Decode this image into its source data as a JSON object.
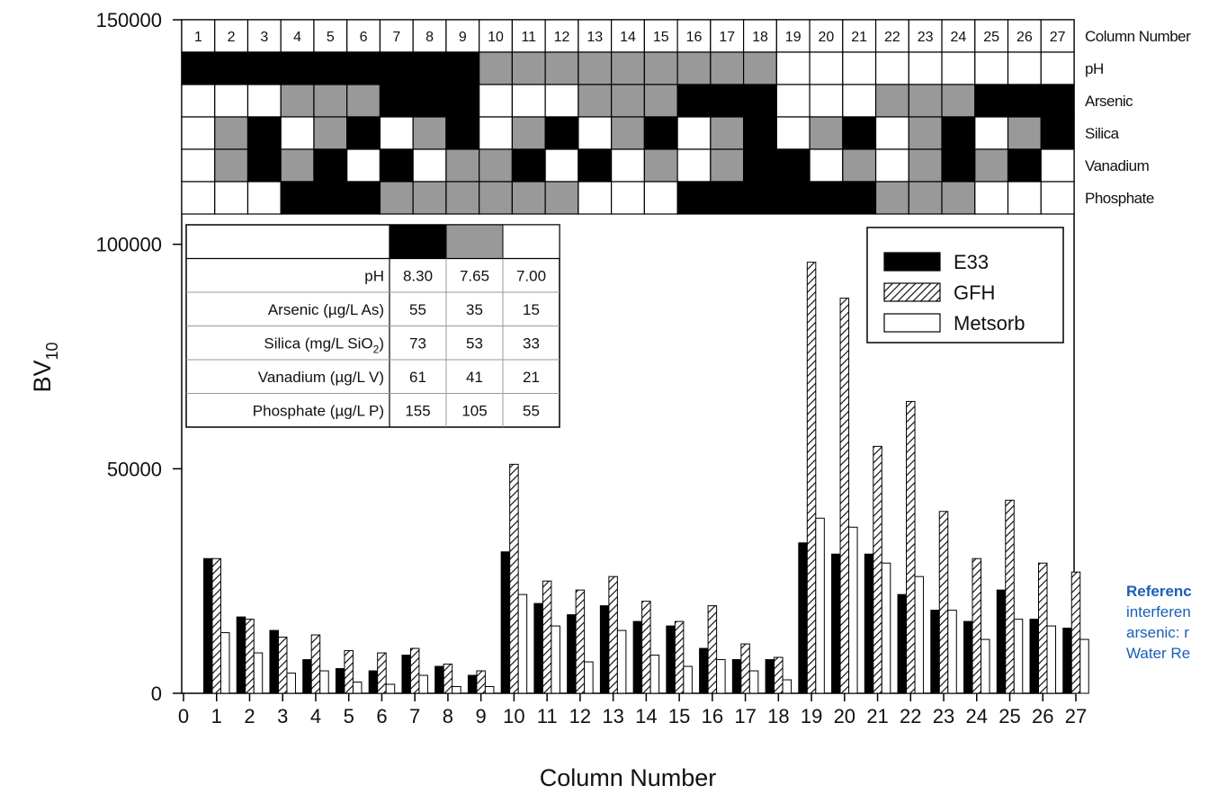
{
  "chart_data": {
    "type": "bar",
    "xlabel": "Column Number",
    "ylabel": "BV",
    "ylabel_subscript": "10",
    "ylim": [
      0,
      150000
    ],
    "yticks": [
      "0",
      "50000",
      "100000",
      "150000"
    ],
    "xlim": [
      0,
      27
    ],
    "xticks": [
      "0",
      "1",
      "2",
      "3",
      "4",
      "5",
      "6",
      "7",
      "8",
      "9",
      "10",
      "11",
      "12",
      "13",
      "14",
      "15",
      "16",
      "17",
      "18",
      "19",
      "20",
      "21",
      "22",
      "23",
      "24",
      "25",
      "26",
      "27"
    ],
    "categories": [
      1,
      2,
      3,
      4,
      5,
      6,
      7,
      8,
      9,
      10,
      11,
      12,
      13,
      14,
      15,
      16,
      17,
      18,
      19,
      20,
      21,
      22,
      23,
      24,
      25,
      26,
      27
    ],
    "series": [
      {
        "name": "E33",
        "fill": "solid-black",
        "values": [
          30000,
          17000,
          14000,
          7500,
          5500,
          5000,
          8500,
          6000,
          4000,
          31500,
          20000,
          17500,
          19500,
          16000,
          15000,
          10000,
          7500,
          7500,
          33500,
          31000,
          31000,
          22000,
          18500,
          16000,
          23000,
          16500,
          14500
        ]
      },
      {
        "name": "GFH",
        "fill": "hatched",
        "values": [
          30000,
          16500,
          12500,
          13000,
          9500,
          9000,
          10000,
          6500,
          5000,
          51000,
          25000,
          23000,
          26000,
          20500,
          16000,
          19500,
          11000,
          8000,
          96000,
          88000,
          55000,
          65000,
          40500,
          30000,
          43000,
          29000,
          27000
        ]
      },
      {
        "name": "Metsorb",
        "fill": "white",
        "values": [
          13500,
          9000,
          4500,
          5000,
          2500,
          2000,
          4000,
          1500,
          1500,
          22000,
          15000,
          7000,
          14000,
          8500,
          6000,
          7500,
          5000,
          3000,
          39000,
          37000,
          29000,
          26000,
          18500,
          12000,
          16500,
          15000,
          12000
        ]
      }
    ],
    "legend_position": "upper-right",
    "condition_matrix": {
      "column_header_label": "Column Number",
      "rows": [
        {
          "label": "pH",
          "levels": [
            "H",
            "H",
            "H",
            "H",
            "H",
            "H",
            "H",
            "H",
            "H",
            "M",
            "M",
            "M",
            "M",
            "M",
            "M",
            "M",
            "M",
            "M",
            "L",
            "L",
            "L",
            "L",
            "L",
            "L",
            "L",
            "L",
            "L"
          ]
        },
        {
          "label": "Arsenic",
          "levels": [
            "L",
            "L",
            "L",
            "M",
            "M",
            "M",
            "H",
            "H",
            "H",
            "L",
            "L",
            "L",
            "M",
            "M",
            "M",
            "H",
            "H",
            "H",
            "L",
            "L",
            "L",
            "M",
            "M",
            "M",
            "H",
            "H",
            "H"
          ]
        },
        {
          "label": "Silica",
          "levels": [
            "L",
            "M",
            "H",
            "L",
            "M",
            "H",
            "L",
            "M",
            "H",
            "L",
            "M",
            "H",
            "L",
            "M",
            "H",
            "L",
            "M",
            "H",
            "L",
            "M",
            "H",
            "L",
            "M",
            "H",
            "L",
            "M",
            "H"
          ]
        },
        {
          "label": "Vanadium",
          "levels": [
            "L",
            "M",
            "H",
            "M",
            "H",
            "L",
            "H",
            "L",
            "M",
            "M",
            "H",
            "L",
            "H",
            "L",
            "M",
            "L",
            "M",
            "H",
            "H",
            "L",
            "M",
            "L",
            "M",
            "H",
            "M",
            "H",
            "L"
          ]
        },
        {
          "label": "Phosphate",
          "levels": [
            "L",
            "L",
            "L",
            "H",
            "H",
            "H",
            "M",
            "M",
            "M",
            "M",
            "M",
            "M",
            "L",
            "L",
            "L",
            "H",
            "H",
            "H",
            "H",
            "H",
            "H",
            "M",
            "M",
            "M",
            "L",
            "L",
            "L"
          ]
        }
      ]
    },
    "level_table": {
      "rows": [
        {
          "label": "pH",
          "values": [
            "8.30",
            "7.65",
            "7.00"
          ]
        },
        {
          "label": "Arsenic (µg/L As)",
          "values": [
            "55",
            "35",
            "15"
          ]
        },
        {
          "label": "Silica (mg/L SiO",
          "sub": "2",
          "tail": ")",
          "values": [
            "73",
            "53",
            "33"
          ]
        },
        {
          "label": "Vanadium (µg/L V)",
          "values": [
            "61",
            "41",
            "21"
          ]
        },
        {
          "label": "Phosphate (µg/L P)",
          "values": [
            "155",
            "105",
            "55"
          ]
        }
      ]
    }
  },
  "reference": {
    "line1": "Referenc",
    "line2": "interferen",
    "line3": "arsenic: r",
    "line4": "Water Re"
  },
  "colors": {
    "high": "#000000",
    "mid": "#999999",
    "low": "#ffffff",
    "reference": "#1a5fb4"
  }
}
